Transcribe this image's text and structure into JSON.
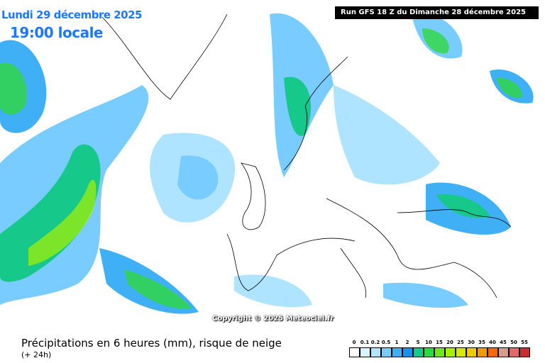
{
  "header": {
    "date": "Lundi 29 décembre 2025",
    "time": "19:00 locale",
    "run": "Run GFS 18 Z du Dimanche 28 décembre 2025"
  },
  "copyright": "Copyright © 2025 Meteociel.fr",
  "legend": {
    "title": "Précipitations en 6 heures (mm), risque de neige",
    "subtitle": "(+ 24h)",
    "items": [
      {
        "label": "0",
        "color": "#ffffff"
      },
      {
        "label": "0.1",
        "color": "#d8f4ff"
      },
      {
        "label": "0.2",
        "color": "#aee4ff"
      },
      {
        "label": "0.5",
        "color": "#78ccff"
      },
      {
        "label": "1",
        "color": "#3fb0f5"
      },
      {
        "label": "2",
        "color": "#1c90e4"
      },
      {
        "label": "5",
        "color": "#16c98a"
      },
      {
        "label": "10",
        "color": "#2fd83f"
      },
      {
        "label": "15",
        "color": "#70e81e"
      },
      {
        "label": "20",
        "color": "#a8f000"
      },
      {
        "label": "25",
        "color": "#d8e800"
      },
      {
        "label": "30",
        "color": "#f2c800"
      },
      {
        "label": "35",
        "color": "#f29a00"
      },
      {
        "label": "40",
        "color": "#f26a10"
      },
      {
        "label": "45",
        "color": "#d89a90"
      },
      {
        "label": "50",
        "color": "#e06a6a"
      },
      {
        "label": "55",
        "color": "#c83030"
      }
    ]
  }
}
